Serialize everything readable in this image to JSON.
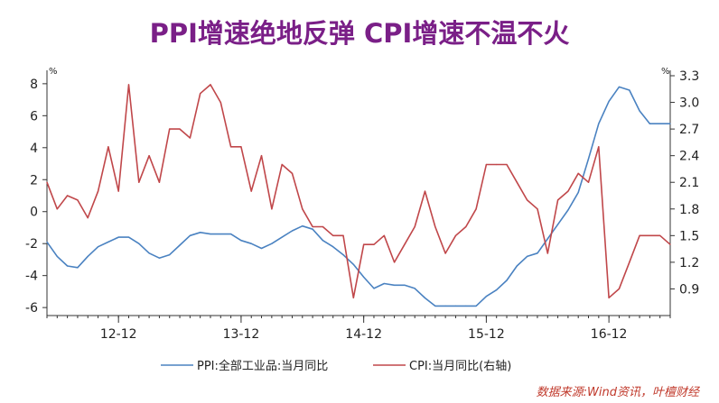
{
  "title": "PPI增速绝地反弹 CPI增速不温不火",
  "source": "数据来源:Wind资讯，叶檀财经",
  "chart_data": {
    "type": "line",
    "title": "PPI增速绝地反弹 CPI增速不温不火",
    "x_ticks": [
      "12-12",
      "13-12",
      "14-12",
      "15-12",
      "16-12"
    ],
    "x_start": "2012-05",
    "x_end": "2017-04",
    "left_axis": {
      "unit": "%",
      "range": [
        -6.5,
        8.5
      ],
      "ticks": [
        8,
        6,
        4,
        2,
        0,
        -2,
        -4,
        -6
      ]
    },
    "right_axis": {
      "unit": "%",
      "range": [
        0.6,
        3.3
      ],
      "ticks": [
        3.3,
        3.0,
        2.7,
        2.4,
        2.1,
        1.8,
        1.5,
        1.2,
        0.9
      ]
    },
    "legend": "bottom",
    "series": [
      {
        "name": "PPI:全部工业品:当月同比",
        "axis": "left",
        "color": "#4a82c1",
        "values": [
          -1.9,
          -2.8,
          -3.4,
          -3.5,
          -2.8,
          -2.2,
          -1.9,
          -1.6,
          -1.6,
          -2.0,
          -2.6,
          -2.9,
          -2.7,
          -2.1,
          -1.5,
          -1.3,
          -1.4,
          -1.4,
          -1.4,
          -1.8,
          -2.0,
          -2.3,
          -2.0,
          -1.6,
          -1.2,
          -0.9,
          -1.1,
          -1.8,
          -2.2,
          -2.7,
          -3.3,
          -4.1,
          -4.8,
          -4.5,
          -4.6,
          -4.6,
          -4.8,
          -5.4,
          -5.9,
          -5.9,
          -5.9,
          -5.9,
          -5.9,
          -5.3,
          -4.9,
          -4.3,
          -3.4,
          -2.8,
          -2.6,
          -1.7,
          -0.8,
          0.1,
          1.2,
          3.3,
          5.5,
          6.9,
          7.8,
          7.6,
          6.3,
          5.5,
          5.5,
          5.5
        ]
      },
      {
        "name": "CPI:当月同比(右轴)",
        "axis": "right",
        "color": "#c0474a",
        "values": [
          2.1,
          1.8,
          1.95,
          1.9,
          1.7,
          2.0,
          2.5,
          2.0,
          3.2,
          2.1,
          2.4,
          2.1,
          2.7,
          2.7,
          2.6,
          3.1,
          3.2,
          3.0,
          2.5,
          2.5,
          2.0,
          2.4,
          1.8,
          2.3,
          2.2,
          1.8,
          1.6,
          1.6,
          1.5,
          1.5,
          0.8,
          1.4,
          1.4,
          1.5,
          1.2,
          1.4,
          1.6,
          2.0,
          1.6,
          1.3,
          1.5,
          1.6,
          1.8,
          2.3,
          2.3,
          2.3,
          2.1,
          1.9,
          1.8,
          1.3,
          1.9,
          2.0,
          2.2,
          2.1,
          2.5,
          0.8,
          0.9,
          1.2,
          1.5,
          1.5,
          1.5,
          1.4
        ]
      }
    ]
  }
}
